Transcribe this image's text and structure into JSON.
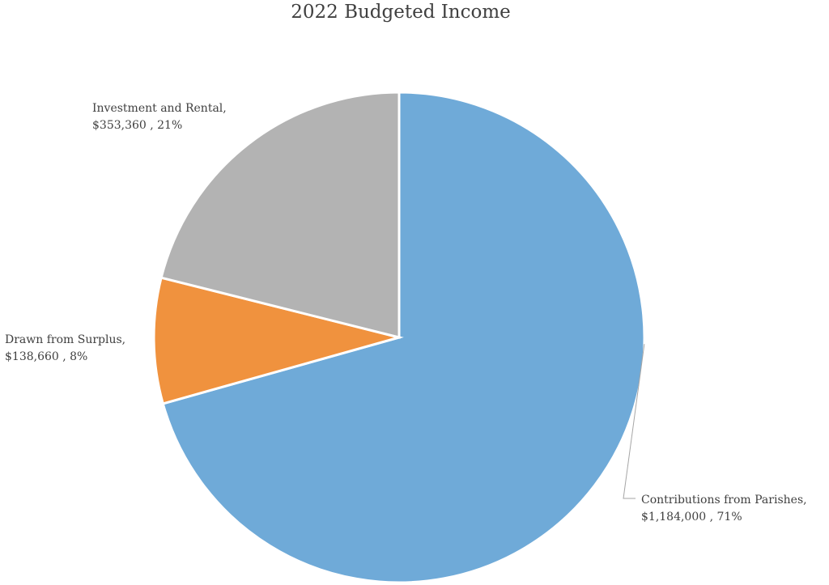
{
  "chart_data": {
    "type": "pie",
    "title": "2022 Budgeted Income",
    "slices": [
      {
        "label": "Contributions from Parishes",
        "value": 1184000,
        "value_text": "$1,184,000",
        "percent": 71,
        "percent_text": "71%",
        "color": "#6FAAD8"
      },
      {
        "label": "Drawn from Surplus",
        "value": 138660,
        "value_text": "$138,660",
        "percent": 8,
        "percent_text": "8%",
        "color": "#F0923E"
      },
      {
        "label": "Investment and Rental",
        "value": 353360,
        "value_text": "$353,360",
        "percent": 21,
        "percent_text": "21%",
        "color": "#B3B3B3"
      }
    ],
    "legend": "none",
    "data_labels": "outside",
    "start_angle": "12 o'clock",
    "direction": "clockwise"
  }
}
